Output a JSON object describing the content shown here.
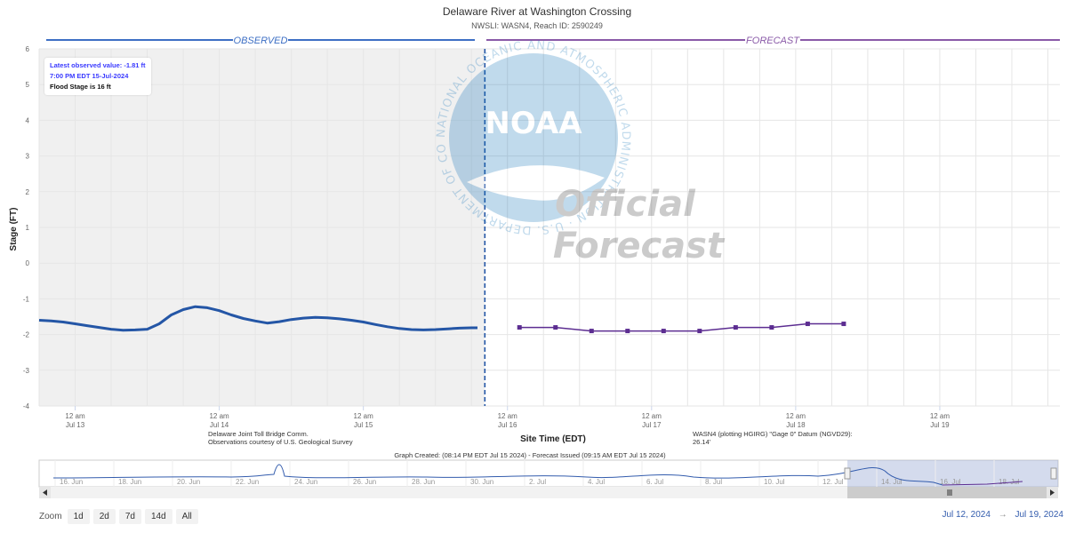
{
  "chart_data": {
    "type": "line",
    "title": "Delaware River at Washington Crossing",
    "subtitle": "NWSLI: WASN4, Reach ID: 2590249",
    "ylabel": "Stage (FT)",
    "xlabel": "Site Time (EDT)",
    "ylim": [
      -4,
      6
    ],
    "yticks": [
      "6",
      "5",
      "4",
      "3",
      "2",
      "1",
      "0",
      "-1",
      "-2",
      "-3",
      "-4"
    ],
    "xlim": [
      "2024-07-12T18:00",
      "2024-07-19T20:00"
    ],
    "xticks": [
      {
        "t": "2024-07-13T00:00",
        "l1": "12 am",
        "l2": "Jul 13"
      },
      {
        "t": "2024-07-14T00:00",
        "l1": "12 am",
        "l2": "Jul 14"
      },
      {
        "t": "2024-07-15T00:00",
        "l1": "12 am",
        "l2": "Jul 15"
      },
      {
        "t": "2024-07-16T00:00",
        "l1": "12 am",
        "l2": "Jul 16"
      },
      {
        "t": "2024-07-17T00:00",
        "l1": "12 am",
        "l2": "Jul 17"
      },
      {
        "t": "2024-07-18T00:00",
        "l1": "12 am",
        "l2": "Jul 18"
      },
      {
        "t": "2024-07-19T00:00",
        "l1": "12 am",
        "l2": "Jul 19"
      }
    ],
    "divider_time": "2024-07-15T20:14",
    "banner_observed": "OBSERVED",
    "banner_forecast": "FORECAST",
    "colors": {
      "observed": "#2456a6",
      "forecast": "#5c2d91",
      "observed_bg": "#f0f0f0",
      "banner_obs": "#3d6fc4",
      "banner_fcst": "#8a5aa8"
    },
    "series": [
      {
        "name": "Observed",
        "x": [
          "2024-07-12T18:00",
          "2024-07-12T20:00",
          "2024-07-12T22:00",
          "2024-07-13T00:00",
          "2024-07-13T02:00",
          "2024-07-13T04:00",
          "2024-07-13T06:00",
          "2024-07-13T08:00",
          "2024-07-13T10:00",
          "2024-07-13T12:00",
          "2024-07-13T14:00",
          "2024-07-13T16:00",
          "2024-07-13T18:00",
          "2024-07-13T20:00",
          "2024-07-13T22:00",
          "2024-07-14T00:00",
          "2024-07-14T02:00",
          "2024-07-14T04:00",
          "2024-07-14T06:00",
          "2024-07-14T08:00",
          "2024-07-14T10:00",
          "2024-07-14T12:00",
          "2024-07-14T14:00",
          "2024-07-14T16:00",
          "2024-07-14T18:00",
          "2024-07-14T20:00",
          "2024-07-14T22:00",
          "2024-07-15T00:00",
          "2024-07-15T02:00",
          "2024-07-15T04:00",
          "2024-07-15T06:00",
          "2024-07-15T08:00",
          "2024-07-15T10:00",
          "2024-07-15T12:00",
          "2024-07-15T14:00",
          "2024-07-15T16:00",
          "2024-07-15T18:00",
          "2024-07-15T19:00"
        ],
        "y": [
          -1.6,
          -1.62,
          -1.65,
          -1.7,
          -1.75,
          -1.8,
          -1.85,
          -1.88,
          -1.87,
          -1.85,
          -1.7,
          -1.45,
          -1.3,
          -1.22,
          -1.25,
          -1.33,
          -1.45,
          -1.55,
          -1.62,
          -1.68,
          -1.64,
          -1.58,
          -1.54,
          -1.52,
          -1.53,
          -1.56,
          -1.6,
          -1.65,
          -1.72,
          -1.78,
          -1.83,
          -1.86,
          -1.87,
          -1.86,
          -1.84,
          -1.82,
          -1.81,
          -1.81
        ]
      },
      {
        "name": "Forecast",
        "x": [
          "2024-07-16T02:00",
          "2024-07-16T08:00",
          "2024-07-16T14:00",
          "2024-07-16T20:00",
          "2024-07-17T02:00",
          "2024-07-17T08:00",
          "2024-07-17T14:00",
          "2024-07-17T20:00",
          "2024-07-18T02:00",
          "2024-07-18T08:00"
        ],
        "y": [
          -1.8,
          -1.8,
          -1.9,
          -1.9,
          -1.9,
          -1.9,
          -1.8,
          -1.8,
          -1.7,
          -1.7
        ]
      }
    ]
  },
  "info_box": {
    "latest_label": "Latest observed value: -1.81 ft",
    "latest_time": "7:00 PM EDT 15-Jul-2024",
    "flood_stage": "Flood Stage is 16 ft"
  },
  "credits": {
    "left_line1": "Delaware Joint Toll Bridge Comm.",
    "left_line2": "Observations courtesy of U.S. Geological Survey",
    "right_line1": "WASN4 (plotting HGIRG) \"Gage 0\" Datum (NGVD29):",
    "right_line2": "26.14'",
    "graph_created": "Graph Created: (08:14 PM EDT Jul 15 2024) - Forecast Issued (09:15 AM EDT Jul 15 2024)"
  },
  "watermark": {
    "org": "NOAA",
    "ring_text": "NATIONAL OCEANIC AND ATMOSPHERIC ADMINISTRATION · U.S. DEPARTMENT OF COMMERCE",
    "official": "Official",
    "forecast": "Forecast"
  },
  "navigator": {
    "labels": [
      "16. Jun",
      "18. Jun",
      "20. Jun",
      "22. Jun",
      "24. Jun",
      "26. Jun",
      "28. Jun",
      "30. Jun",
      "2. Jul",
      "4. Jul",
      "6. Jul",
      "8. Jul",
      "10. Jul",
      "12. Jul",
      "14. Jul",
      "16. Jul",
      "18. Jul"
    ]
  },
  "zoom": {
    "label": "Zoom",
    "buttons": [
      "1d",
      "2d",
      "7d",
      "14d",
      "All"
    ]
  },
  "range": {
    "from": "Jul 12, 2024",
    "to": "Jul 19, 2024",
    "arrow": "→"
  }
}
